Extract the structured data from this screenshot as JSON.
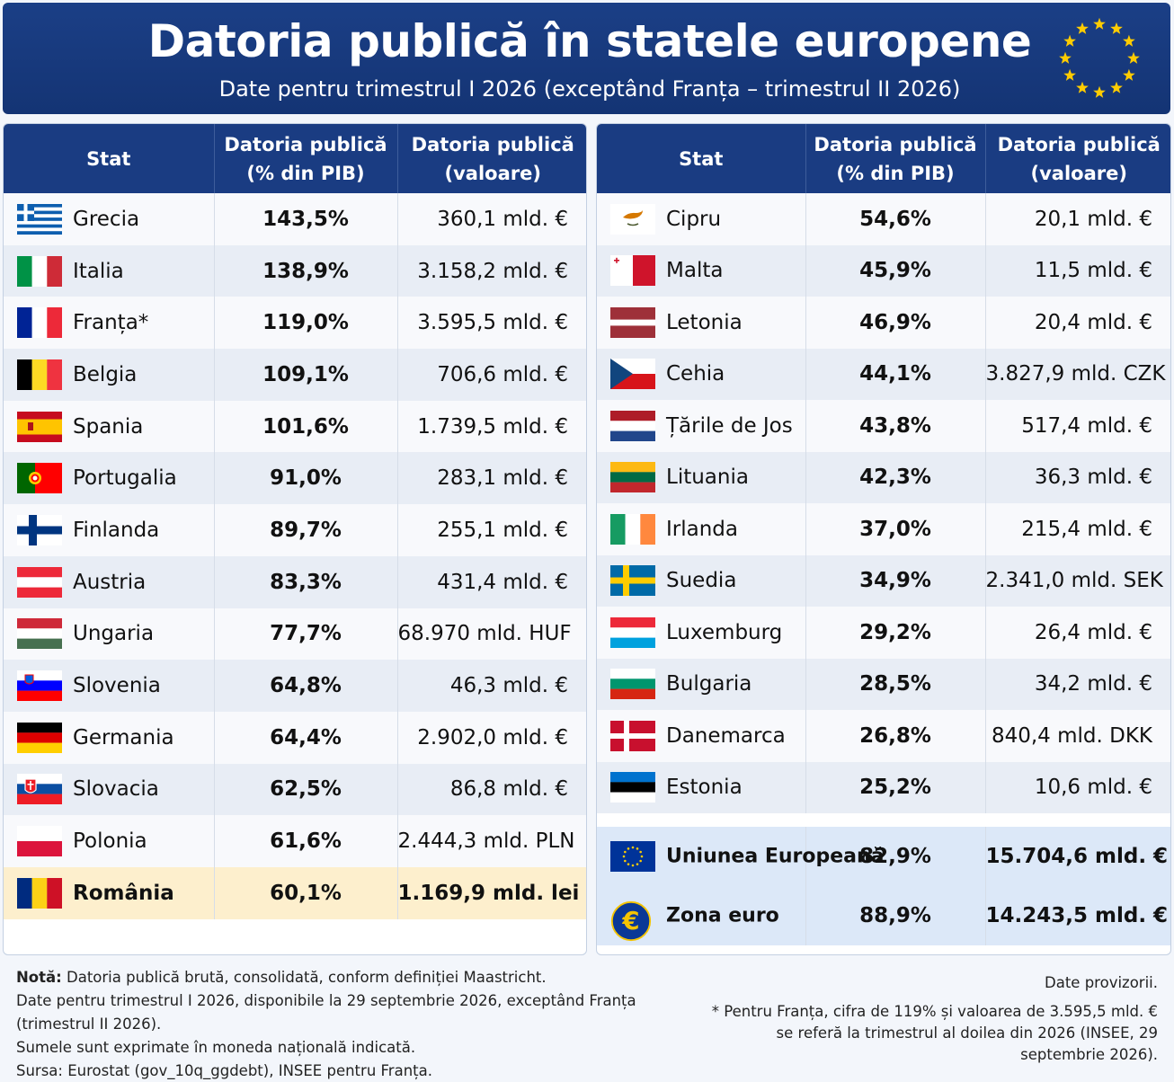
{
  "header": {
    "title": "Datoria publică în statele europene",
    "subtitle": "Date pentru trimestrul I 2026 (exceptând Franța – trimestrul II 2026)"
  },
  "colors": {
    "header_bg": "#1a3c82",
    "row_light": "#f8f9fc",
    "row_dark": "#e8edf5",
    "highlight": "#fdefcd",
    "aggregate": "#dce8f8",
    "eu_star": "#ffcc00"
  },
  "table_headers": {
    "col1": "Stat",
    "col2": "Datoria publică (% din PIB)",
    "col3": "Datoria publică (valoare)"
  },
  "left_rows": [
    {
      "flag": "greece-flag",
      "name": "Grecia",
      "pct": "143,5%",
      "value": "360,1 mld. €"
    },
    {
      "flag": "italy-flag",
      "name": "Italia",
      "pct": "138,9%",
      "value": "3.158,2 mld. €"
    },
    {
      "flag": "france-flag",
      "name": "Franța*",
      "pct": "119,0%",
      "value": "3.595,5 mld. €"
    },
    {
      "flag": "belgium-flag",
      "name": "Belgia",
      "pct": "109,1%",
      "value": "706,6 mld. €"
    },
    {
      "flag": "spain-flag",
      "name": "Spania",
      "pct": "101,6%",
      "value": "1.739,5 mld. €"
    },
    {
      "flag": "portugal-flag",
      "name": "Portugalia",
      "pct": "91,0%",
      "value": "283,1 mld. €"
    },
    {
      "flag": "finland-flag",
      "name": "Finlanda",
      "pct": "89,7%",
      "value": "255,1 mld. €"
    },
    {
      "flag": "austria-flag",
      "name": "Austria",
      "pct": "83,3%",
      "value": "431,4 mld. €"
    },
    {
      "flag": "hungary-flag",
      "name": "Ungaria",
      "pct": "77,7%",
      "value": "68.970 mld. HUF"
    },
    {
      "flag": "slovenia-flag",
      "name": "Slovenia",
      "pct": "64,8%",
      "value": "46,3 mld. €"
    },
    {
      "flag": "germany-flag",
      "name": "Germania",
      "pct": "64,4%",
      "value": "2.902,0 mld. €"
    },
    {
      "flag": "slovakia-flag",
      "name": "Slovacia",
      "pct": "62,5%",
      "value": "86,8 mld. €"
    },
    {
      "flag": "poland-flag",
      "name": "Polonia",
      "pct": "61,6%",
      "value": "2.444,3 mld. PLN"
    },
    {
      "flag": "romania-flag",
      "name": "România",
      "pct": "60,1%",
      "value": "1.169,9 mld. lei"
    }
  ],
  "right_rows": [
    {
      "flag": "cyprus-flag",
      "name": "Cipru",
      "pct": "54,6%",
      "value": "20,1 mld. €"
    },
    {
      "flag": "malta-flag",
      "name": "Malta",
      "pct": "45,9%",
      "value": "11,5 mld. €"
    },
    {
      "flag": "latvia-flag",
      "name": "Letonia",
      "pct": "46,9%",
      "value": "20,4 mld. €"
    },
    {
      "flag": "czechia-flag",
      "name": "Cehia",
      "pct": "44,1%",
      "value": "3.827,9 mld. CZK"
    },
    {
      "flag": "netherlands-flag",
      "name": "Țările de Jos",
      "pct": "43,8%",
      "value": "517,4 mld. €"
    },
    {
      "flag": "lithuania-flag",
      "name": "Lituania",
      "pct": "42,3%",
      "value": "36,3 mld. €"
    },
    {
      "flag": "ireland-flag",
      "name": "Irlanda",
      "pct": "37,0%",
      "value": "215,4 mld. €"
    },
    {
      "flag": "sweden-flag",
      "name": "Suedia",
      "pct": "34,9%",
      "value": "2.341,0 mld. SEK"
    },
    {
      "flag": "luxembourg-flag",
      "name": "Luxemburg",
      "pct": "29,2%",
      "value": "26,4 mld. €"
    },
    {
      "flag": "bulgaria-flag",
      "name": "Bulgaria",
      "pct": "28,5%",
      "value": "34,2 mld. €"
    },
    {
      "flag": "denmark-flag",
      "name": "Danemarca",
      "pct": "26,8%",
      "value": "840,4 mld. DKK"
    },
    {
      "flag": "estonia-flag",
      "name": "Estonia",
      "pct": "25,2%",
      "value": "10,6 mld. €"
    }
  ],
  "aggregates": [
    {
      "icon": "eu-flag-icon",
      "name": "Uniunea Europeană",
      "pct": "82,9%",
      "value": "15.704,6 mld. €"
    },
    {
      "icon": "euro-coin-icon",
      "name": "Zona euro",
      "pct": "88,9%",
      "value": "14.243,5 mld. €"
    }
  ],
  "notes": {
    "label": "Notă:",
    "line1": "Datoria publică brută, consolidată, conform definiției Maastricht.",
    "line2": "Date pentru trimestrul I 2026, disponibile la 29 septembrie 2026, exceptând Franța (trimestrul II 2026).",
    "line3": "Sumele sunt exprimate în moneda națională indicată.",
    "line4": "Sursa: Eurostat (gov_10q_ggdebt), INSEE pentru Franța."
  },
  "right_notes": {
    "provisional": "Date provizorii.",
    "footnote": "* Pentru Franța, cifra de 119% și valoarea de 3.595,5 mld. € se referă la trimestrul al doilea din 2026 (INSEE, 29 septembrie 2026)."
  }
}
